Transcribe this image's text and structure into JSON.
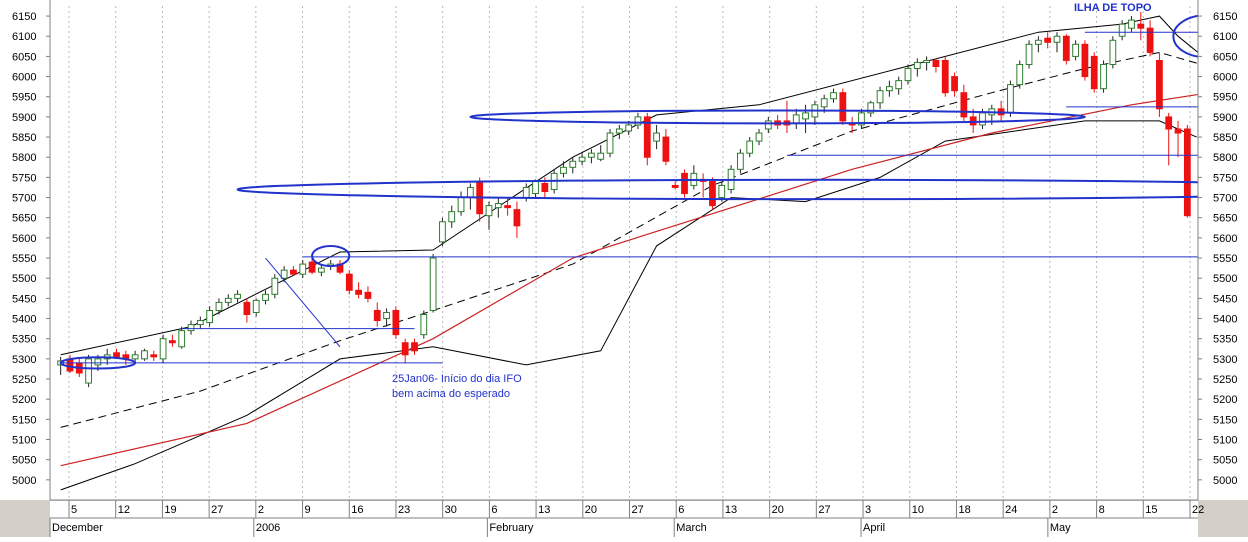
{
  "chart_data": {
    "type": "candlestick",
    "y_ticks": [
      5000,
      5050,
      5100,
      5150,
      5200,
      5250,
      5300,
      5350,
      5400,
      5450,
      5500,
      5550,
      5600,
      5650,
      5700,
      5750,
      5800,
      5850,
      5900,
      5950,
      6000,
      6050,
      6100,
      6150
    ],
    "ylim": [
      4950,
      6175
    ],
    "day_ticks": [
      "5",
      "12",
      "19",
      "27",
      "2",
      "9",
      "16",
      "23",
      "30",
      "6",
      "13",
      "20",
      "27",
      "6",
      "13",
      "20",
      "27",
      "3",
      "10",
      "18",
      "24",
      "2",
      "8",
      "15",
      "22"
    ],
    "month_labels": [
      "December",
      "2006",
      "February",
      "March",
      "April",
      "May"
    ],
    "up_color": "#2e7d2e",
    "down_color": "#ee1111",
    "bollinger_color": "#000000",
    "ma_color": "#cc2222",
    "annotation_color": "#2233cc",
    "candles": [
      {
        "o": 5285,
        "h": 5305,
        "l": 5260,
        "c": 5295
      },
      {
        "o": 5300,
        "h": 5310,
        "l": 5265,
        "c": 5270
      },
      {
        "o": 5290,
        "h": 5300,
        "l": 5255,
        "c": 5265
      },
      {
        "o": 5240,
        "h": 5310,
        "l": 5230,
        "c": 5300
      },
      {
        "o": 5285,
        "h": 5310,
        "l": 5270,
        "c": 5300
      },
      {
        "o": 5300,
        "h": 5325,
        "l": 5285,
        "c": 5310
      },
      {
        "o": 5315,
        "h": 5325,
        "l": 5300,
        "c": 5305
      },
      {
        "o": 5310,
        "h": 5320,
        "l": 5285,
        "c": 5300
      },
      {
        "o": 5300,
        "h": 5320,
        "l": 5290,
        "c": 5310
      },
      {
        "o": 5300,
        "h": 5325,
        "l": 5295,
        "c": 5320
      },
      {
        "o": 5310,
        "h": 5320,
        "l": 5295,
        "c": 5305
      },
      {
        "o": 5300,
        "h": 5360,
        "l": 5290,
        "c": 5350
      },
      {
        "o": 5345,
        "h": 5360,
        "l": 5330,
        "c": 5340
      },
      {
        "o": 5330,
        "h": 5380,
        "l": 5325,
        "c": 5370
      },
      {
        "o": 5370,
        "h": 5395,
        "l": 5360,
        "c": 5385
      },
      {
        "o": 5385,
        "h": 5405,
        "l": 5375,
        "c": 5395
      },
      {
        "o": 5390,
        "h": 5430,
        "l": 5380,
        "c": 5420
      },
      {
        "o": 5420,
        "h": 5450,
        "l": 5410,
        "c": 5440
      },
      {
        "o": 5440,
        "h": 5460,
        "l": 5430,
        "c": 5450
      },
      {
        "o": 5450,
        "h": 5470,
        "l": 5440,
        "c": 5460
      },
      {
        "o": 5440,
        "h": 5450,
        "l": 5390,
        "c": 5410
      },
      {
        "o": 5415,
        "h": 5450,
        "l": 5405,
        "c": 5445
      },
      {
        "o": 5445,
        "h": 5470,
        "l": 5435,
        "c": 5460
      },
      {
        "o": 5460,
        "h": 5510,
        "l": 5450,
        "c": 5500
      },
      {
        "o": 5500,
        "h": 5530,
        "l": 5490,
        "c": 5520
      },
      {
        "o": 5520,
        "h": 5530,
        "l": 5505,
        "c": 5510
      },
      {
        "o": 5510,
        "h": 5545,
        "l": 5500,
        "c": 5535
      },
      {
        "o": 5540,
        "h": 5550,
        "l": 5510,
        "c": 5515
      },
      {
        "o": 5515,
        "h": 5535,
        "l": 5505,
        "c": 5525
      },
      {
        "o": 5530,
        "h": 5545,
        "l": 5520,
        "c": 5535
      },
      {
        "o": 5535,
        "h": 5545,
        "l": 5510,
        "c": 5515
      },
      {
        "o": 5510,
        "h": 5520,
        "l": 5460,
        "c": 5470
      },
      {
        "o": 5470,
        "h": 5490,
        "l": 5450,
        "c": 5460
      },
      {
        "o": 5465,
        "h": 5480,
        "l": 5440,
        "c": 5450
      },
      {
        "o": 5420,
        "h": 5440,
        "l": 5380,
        "c": 5395
      },
      {
        "o": 5400,
        "h": 5425,
        "l": 5380,
        "c": 5415
      },
      {
        "o": 5420,
        "h": 5430,
        "l": 5350,
        "c": 5360
      },
      {
        "o": 5340,
        "h": 5350,
        "l": 5290,
        "c": 5310
      },
      {
        "o": 5340,
        "h": 5350,
        "l": 5310,
        "c": 5320
      },
      {
        "o": 5360,
        "h": 5420,
        "l": 5350,
        "c": 5410
      },
      {
        "o": 5420,
        "h": 5560,
        "l": 5415,
        "c": 5550
      },
      {
        "o": 5590,
        "h": 5650,
        "l": 5580,
        "c": 5640
      },
      {
        "o": 5640,
        "h": 5680,
        "l": 5625,
        "c": 5665
      },
      {
        "o": 5665,
        "h": 5715,
        "l": 5655,
        "c": 5700
      },
      {
        "o": 5700,
        "h": 5735,
        "l": 5670,
        "c": 5725
      },
      {
        "o": 5740,
        "h": 5750,
        "l": 5640,
        "c": 5660
      },
      {
        "o": 5655,
        "h": 5690,
        "l": 5620,
        "c": 5680
      },
      {
        "o": 5675,
        "h": 5700,
        "l": 5650,
        "c": 5685
      },
      {
        "o": 5680,
        "h": 5700,
        "l": 5655,
        "c": 5675
      },
      {
        "o": 5670,
        "h": 5690,
        "l": 5600,
        "c": 5630
      },
      {
        "o": 5700,
        "h": 5735,
        "l": 5690,
        "c": 5725
      },
      {
        "o": 5710,
        "h": 5745,
        "l": 5700,
        "c": 5740
      },
      {
        "o": 5735,
        "h": 5750,
        "l": 5700,
        "c": 5715
      },
      {
        "o": 5720,
        "h": 5770,
        "l": 5710,
        "c": 5760
      },
      {
        "o": 5760,
        "h": 5790,
        "l": 5750,
        "c": 5775
      },
      {
        "o": 5775,
        "h": 5800,
        "l": 5760,
        "c": 5790
      },
      {
        "o": 5790,
        "h": 5810,
        "l": 5780,
        "c": 5800
      },
      {
        "o": 5800,
        "h": 5820,
        "l": 5785,
        "c": 5810
      },
      {
        "o": 5795,
        "h": 5830,
        "l": 5790,
        "c": 5810
      },
      {
        "o": 5810,
        "h": 5870,
        "l": 5800,
        "c": 5860
      },
      {
        "o": 5860,
        "h": 5880,
        "l": 5845,
        "c": 5870
      },
      {
        "o": 5865,
        "h": 5890,
        "l": 5855,
        "c": 5880
      },
      {
        "o": 5880,
        "h": 5910,
        "l": 5870,
        "c": 5900
      },
      {
        "o": 5900,
        "h": 5910,
        "l": 5780,
        "c": 5800
      },
      {
        "o": 5840,
        "h": 5880,
        "l": 5820,
        "c": 5860
      },
      {
        "o": 5850,
        "h": 5870,
        "l": 5780,
        "c": 5790
      },
      {
        "o": 5730,
        "h": 5740,
        "l": 5720,
        "c": 5725
      },
      {
        "o": 5760,
        "h": 5770,
        "l": 5700,
        "c": 5710
      },
      {
        "o": 5730,
        "h": 5780,
        "l": 5720,
        "c": 5760
      },
      {
        "o": 5745,
        "h": 5760,
        "l": 5700,
        "c": 5740
      },
      {
        "o": 5740,
        "h": 5750,
        "l": 5670,
        "c": 5680
      },
      {
        "o": 5700,
        "h": 5740,
        "l": 5690,
        "c": 5730
      },
      {
        "o": 5720,
        "h": 5780,
        "l": 5710,
        "c": 5770
      },
      {
        "o": 5770,
        "h": 5820,
        "l": 5760,
        "c": 5810
      },
      {
        "o": 5810,
        "h": 5850,
        "l": 5800,
        "c": 5840
      },
      {
        "o": 5840,
        "h": 5870,
        "l": 5830,
        "c": 5860
      },
      {
        "o": 5870,
        "h": 5900,
        "l": 5860,
        "c": 5890
      },
      {
        "o": 5890,
        "h": 5905,
        "l": 5870,
        "c": 5880
      },
      {
        "o": 5890,
        "h": 5940,
        "l": 5860,
        "c": 5880
      },
      {
        "o": 5885,
        "h": 5920,
        "l": 5870,
        "c": 5905
      },
      {
        "o": 5895,
        "h": 5930,
        "l": 5860,
        "c": 5910
      },
      {
        "o": 5900,
        "h": 5940,
        "l": 5880,
        "c": 5930
      },
      {
        "o": 5925,
        "h": 5955,
        "l": 5910,
        "c": 5945
      },
      {
        "o": 5945,
        "h": 5970,
        "l": 5935,
        "c": 5960
      },
      {
        "o": 5960,
        "h": 5970,
        "l": 5880,
        "c": 5890
      },
      {
        "o": 5885,
        "h": 5900,
        "l": 5860,
        "c": 5880
      },
      {
        "o": 5880,
        "h": 5920,
        "l": 5870,
        "c": 5910
      },
      {
        "o": 5910,
        "h": 5940,
        "l": 5900,
        "c": 5935
      },
      {
        "o": 5935,
        "h": 5975,
        "l": 5920,
        "c": 5965
      },
      {
        "o": 5965,
        "h": 5990,
        "l": 5950,
        "c": 5975
      },
      {
        "o": 5970,
        "h": 6000,
        "l": 5955,
        "c": 5990
      },
      {
        "o": 5990,
        "h": 6030,
        "l": 5980,
        "c": 6020
      },
      {
        "o": 6020,
        "h": 6045,
        "l": 6000,
        "c": 6035
      },
      {
        "o": 6035,
        "h": 6050,
        "l": 6015,
        "c": 6040
      },
      {
        "o": 6040,
        "h": 6045,
        "l": 6010,
        "c": 6025
      },
      {
        "o": 6040,
        "h": 6050,
        "l": 5950,
        "c": 5960
      },
      {
        "o": 6000,
        "h": 6010,
        "l": 5950,
        "c": 5965
      },
      {
        "o": 5960,
        "h": 5980,
        "l": 5890,
        "c": 5900
      },
      {
        "o": 5900,
        "h": 5920,
        "l": 5860,
        "c": 5880
      },
      {
        "o": 5880,
        "h": 5920,
        "l": 5870,
        "c": 5910
      },
      {
        "o": 5905,
        "h": 5930,
        "l": 5880,
        "c": 5920
      },
      {
        "o": 5920,
        "h": 5940,
        "l": 5890,
        "c": 5905
      },
      {
        "o": 5910,
        "h": 5990,
        "l": 5900,
        "c": 5980
      },
      {
        "o": 5980,
        "h": 6040,
        "l": 5970,
        "c": 6030
      },
      {
        "o": 6030,
        "h": 6090,
        "l": 6020,
        "c": 6080
      },
      {
        "o": 6080,
        "h": 6100,
        "l": 6060,
        "c": 6090
      },
      {
        "o": 6095,
        "h": 6110,
        "l": 6070,
        "c": 6085
      },
      {
        "o": 6085,
        "h": 6110,
        "l": 6060,
        "c": 6100
      },
      {
        "o": 6100,
        "h": 6105,
        "l": 6030,
        "c": 6040
      },
      {
        "o": 6050,
        "h": 6090,
        "l": 6040,
        "c": 6080
      },
      {
        "o": 6080,
        "h": 6090,
        "l": 5990,
        "c": 6000
      },
      {
        "o": 6050,
        "h": 6060,
        "l": 5960,
        "c": 5970
      },
      {
        "o": 5970,
        "h": 6040,
        "l": 5960,
        "c": 6030
      },
      {
        "o": 6030,
        "h": 6100,
        "l": 6020,
        "c": 6090
      },
      {
        "o": 6100,
        "h": 6140,
        "l": 6090,
        "c": 6130
      },
      {
        "o": 6120,
        "h": 6150,
        "l": 6110,
        "c": 6140
      },
      {
        "o": 6130,
        "h": 6160,
        "l": 6090,
        "c": 6120
      },
      {
        "o": 6120,
        "h": 6140,
        "l": 6050,
        "c": 6060
      },
      {
        "o": 6040,
        "h": 6060,
        "l": 5900,
        "c": 5920
      },
      {
        "o": 5900,
        "h": 5910,
        "l": 5780,
        "c": 5870
      },
      {
        "o": 5870,
        "h": 5890,
        "l": 5800,
        "c": 5860
      },
      {
        "o": 5870,
        "h": 5880,
        "l": 5650,
        "c": 5655
      }
    ],
    "bb_upper": [
      [
        0,
        5310
      ],
      [
        14,
        5380
      ],
      [
        30,
        5565
      ],
      [
        40,
        5570
      ],
      [
        55,
        5800
      ],
      [
        64,
        5905
      ],
      [
        75,
        5930
      ],
      [
        90,
        6020
      ],
      [
        105,
        6110
      ],
      [
        114,
        6130
      ],
      [
        118,
        6150
      ],
      [
        120,
        6100
      ],
      [
        124,
        6025
      ]
    ],
    "bb_lower": [
      [
        0,
        4975
      ],
      [
        8,
        5040
      ],
      [
        20,
        5160
      ],
      [
        30,
        5300
      ],
      [
        40,
        5330
      ],
      [
        50,
        5285
      ],
      [
        58,
        5320
      ],
      [
        64,
        5580
      ],
      [
        72,
        5700
      ],
      [
        80,
        5690
      ],
      [
        88,
        5750
      ],
      [
        95,
        5840
      ],
      [
        110,
        5890
      ],
      [
        118,
        5890
      ],
      [
        122,
        5850
      ]
    ],
    "bb_middle": [
      [
        0,
        5130
      ],
      [
        15,
        5220
      ],
      [
        30,
        5345
      ],
      [
        40,
        5420
      ],
      [
        55,
        5535
      ],
      [
        70,
        5730
      ],
      [
        85,
        5865
      ],
      [
        100,
        5960
      ],
      [
        110,
        6020
      ],
      [
        118,
        6060
      ],
      [
        124,
        6020
      ]
    ],
    "ma_long": [
      [
        0,
        5035
      ],
      [
        20,
        5140
      ],
      [
        40,
        5350
      ],
      [
        55,
        5550
      ],
      [
        70,
        5660
      ],
      [
        85,
        5770
      ],
      [
        100,
        5860
      ],
      [
        115,
        5930
      ],
      [
        122,
        5955
      ],
      [
        124,
        5955
      ]
    ],
    "annotations": {
      "title": "ILHA DE TOPO",
      "note_line1": "25Jan06- Início do dia IFO",
      "note_line2": "bem acima do esperado"
    },
    "hlines": [
      {
        "y": 5553,
        "x1": 26,
        "x2": 138
      },
      {
        "y": 5805,
        "x1": 78,
        "x2": 126
      },
      {
        "y": 5290,
        "x1": 0,
        "x2": 41
      },
      {
        "y": 5375,
        "x1": 13,
        "x2": 38
      },
      {
        "y": 5925,
        "x1": 108,
        "x2": 127
      },
      {
        "y": 6110,
        "x1": 110,
        "x2": 128
      }
    ],
    "ellipses": [
      {
        "x": 81,
        "y": 5720,
        "rx": 62,
        "ry": 24
      },
      {
        "x": 77,
        "y": 5900,
        "rx": 33,
        "ry": 16
      },
      {
        "x": 123,
        "y": 6100,
        "rx": 3.5,
        "ry": 52
      },
      {
        "x": 29,
        "y": 5555,
        "rx": 2,
        "ry": 25
      },
      {
        "x": 4,
        "y": 5290,
        "rx": 4,
        "ry": 14
      }
    ]
  }
}
